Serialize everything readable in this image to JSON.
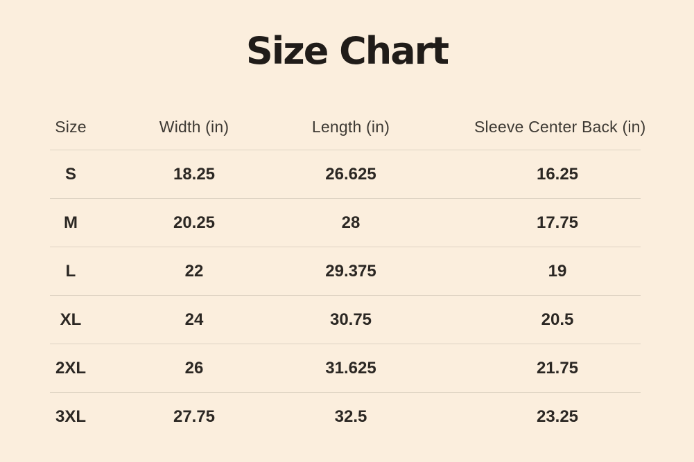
{
  "page": {
    "title": "Size Chart",
    "background_color": "#fbeedd",
    "divider_color": "#ddd2c2",
    "title_color": "#201c19",
    "header_text_color": "#3d3933",
    "cell_text_color": "#2b2723"
  },
  "chart_data": {
    "type": "table",
    "title": "Size Chart",
    "columns": [
      "Size",
      "Width (in)",
      "Length (in)",
      "Sleeve Center Back (in)"
    ],
    "rows": [
      [
        "S",
        "18.25",
        "26.625",
        "16.25"
      ],
      [
        "M",
        "20.25",
        "28",
        "17.75"
      ],
      [
        "L",
        "22",
        "29.375",
        "19"
      ],
      [
        "XL",
        "24",
        "30.75",
        "20.5"
      ],
      [
        "2XL",
        "26",
        "31.625",
        "21.75"
      ],
      [
        "3XL",
        "27.75",
        "32.5",
        "23.25"
      ]
    ],
    "layout": {
      "grid": "horizontal-dividers-only",
      "last_row_border": false,
      "alignment": "center"
    }
  }
}
